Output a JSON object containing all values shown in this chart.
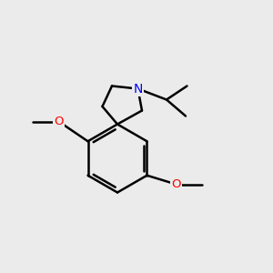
{
  "bg_color": "#ebebeb",
  "bond_color": "#000000",
  "n_color": "#0000ff",
  "o_color": "#ff0000",
  "line_width": 1.8,
  "figsize": [
    3.0,
    3.0
  ],
  "dpi": 100,
  "xlim": [
    0,
    10
  ],
  "ylim": [
    0,
    10
  ]
}
